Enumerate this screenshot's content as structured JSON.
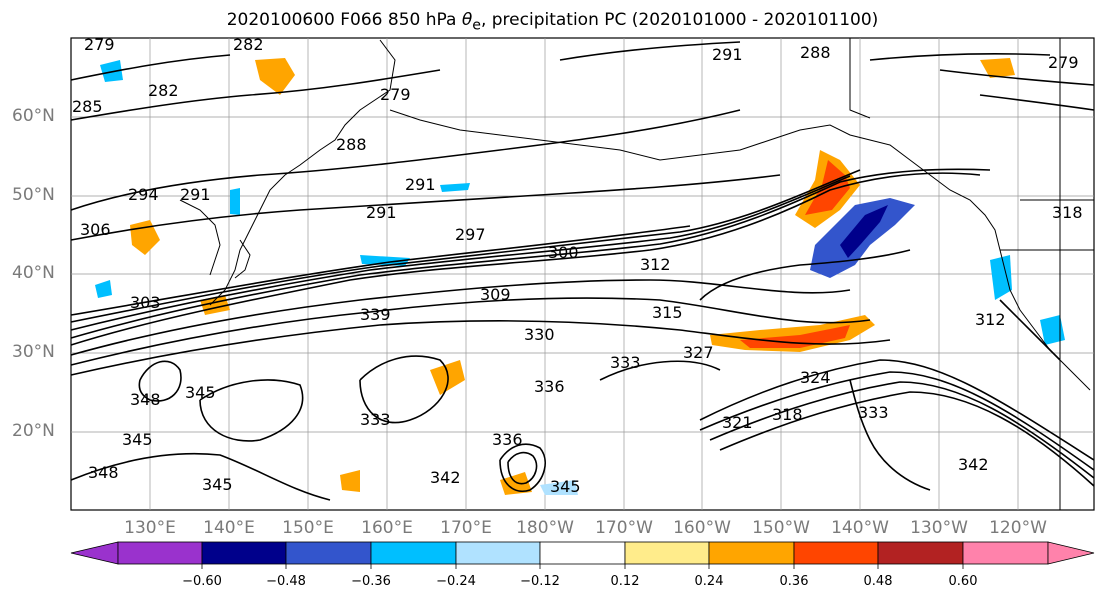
{
  "title": {
    "prefix": "2020100600 F066 850 hPa ",
    "theta": "θ",
    "sub": "e",
    "suffix": ", precipitation PC (2020101000 - 2020101100)"
  },
  "map": {
    "lat_labels": [
      "60°N",
      "50°N",
      "40°N",
      "30°N",
      "20°N"
    ],
    "lon_labels": [
      "130°E",
      "140°E",
      "150°E",
      "160°E",
      "170°E",
      "180°W",
      "170°W",
      "160°W",
      "150°W",
      "140°W",
      "130°W",
      "120°W"
    ],
    "contour_labels": [
      "279",
      "282",
      "282",
      "285",
      "288",
      "279",
      "291",
      "294",
      "291",
      "291",
      "297",
      "300",
      "306",
      "303",
      "312",
      "315",
      "309",
      "330",
      "333",
      "327",
      "336",
      "339",
      "348",
      "345",
      "345",
      "333",
      "321",
      "318",
      "324",
      "333",
      "345",
      "342",
      "348",
      "336",
      "345",
      "342",
      "312",
      "318",
      "288",
      "279",
      "291"
    ]
  },
  "colorbar": {
    "ticks": [
      "−0.60",
      "−0.48",
      "−0.36",
      "−0.24",
      "−0.12",
      "0.12",
      "0.24",
      "0.36",
      "0.48",
      "0.60"
    ],
    "colors": [
      "#9a32cd",
      "#00008b",
      "#3355cc",
      "#00bfff",
      "#b0e2ff",
      "#ffffff",
      "#ffec8b",
      "#ffa500",
      "#ff4500",
      "#b22222",
      "#ff82ab"
    ],
    "colors_note": "purple, navy, royal blue, deep sky blue, light blue, white, light yellow, orange, red-orange, firebrick, pink"
  }
}
